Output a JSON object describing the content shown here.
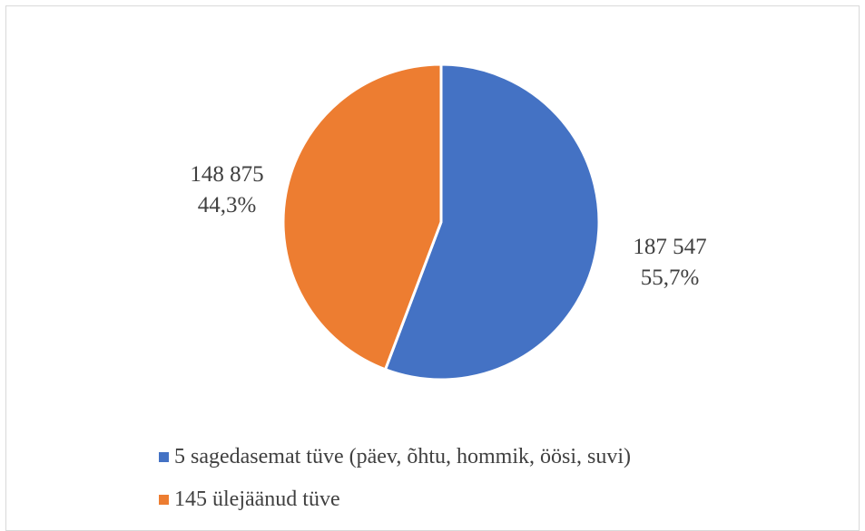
{
  "chart_data": {
    "type": "pie",
    "title": "",
    "start_angle_deg": 0,
    "direction": "clockwise",
    "slices": [
      {
        "label": "5 sagedasemat tüve (päev, õhtu, hommik, öösi, suvi)",
        "value": 187547,
        "value_text": "187 547",
        "percent": 55.7,
        "percent_text": "55,7%",
        "color": "#4472C4"
      },
      {
        "label": "145 ülejäänud tüve",
        "value": 148875,
        "value_text": "148 875",
        "percent": 44.3,
        "percent_text": "44,3%",
        "color": "#ED7D31"
      }
    ],
    "legend": {
      "position": "bottom",
      "entries": [
        "5 sagedasemat tüve (päev, õhtu, hommik, öösi, suvi)",
        "145 ülejäänud tüve"
      ]
    }
  }
}
